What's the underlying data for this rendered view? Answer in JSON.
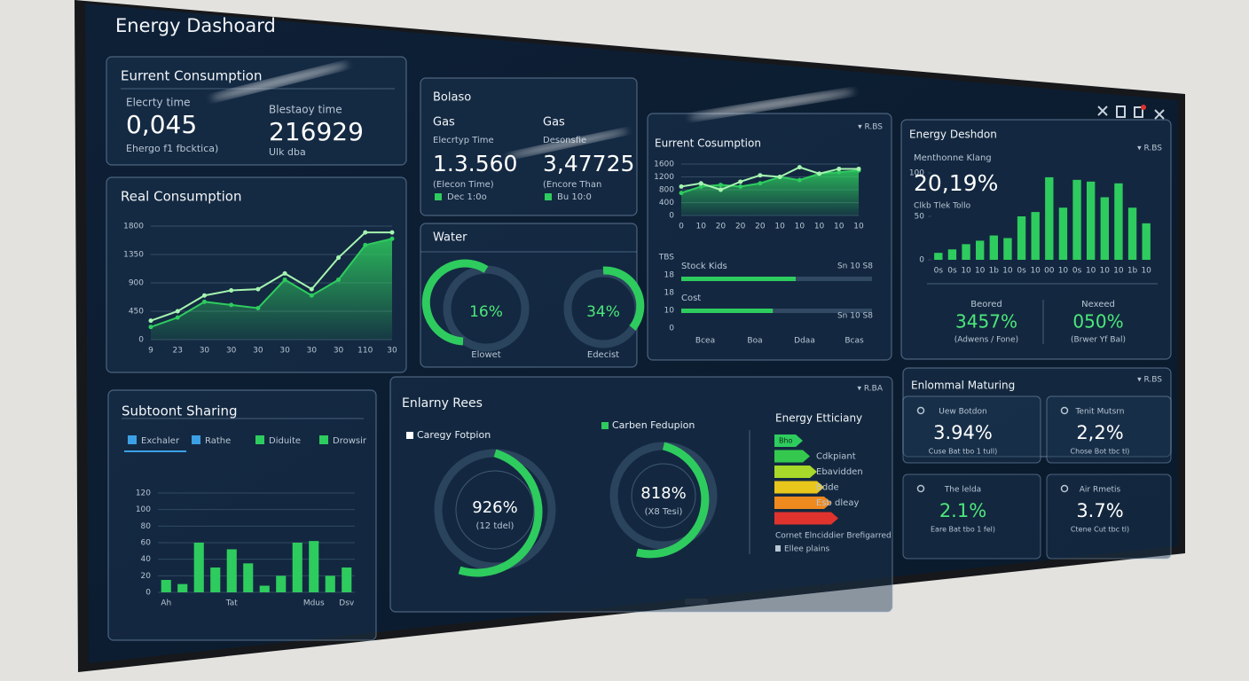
{
  "header": {
    "title": "Energy Dashoard"
  },
  "current_consumption": {
    "title": "Eurrent Consumption",
    "items": [
      {
        "label": "Elecrty time",
        "value": "0,045",
        "note": "Ehergo f1 fbcktica)"
      },
      {
        "label": "Blestaoy time",
        "value": "216929",
        "note": "Ulk dba"
      }
    ]
  },
  "real_consumption": {
    "title": "Real Consumption",
    "chart": {
      "type": "line",
      "categories": [
        "9",
        "23",
        "30",
        "30",
        "30",
        "30",
        "30",
        "30",
        "110",
        "30"
      ],
      "ylim": [
        0,
        1800
      ],
      "yticks": [
        0,
        450,
        900,
        1350,
        1800
      ],
      "grid": true,
      "series": [
        {
          "color": "#2ecc5e",
          "area": true,
          "values": [
            200,
            350,
            600,
            550,
            500,
            950,
            700,
            950,
            1500,
            1600
          ]
        },
        {
          "color": "#a6f5b0",
          "area": false,
          "values": [
            300,
            450,
            700,
            780,
            800,
            1050,
            800,
            1300,
            1700,
            1700
          ]
        }
      ]
    }
  },
  "bolaso": {
    "title": "Bolaso",
    "items": [
      {
        "label": "Gas",
        "sublabel": "Elecrtyp Time",
        "value": "1.3.560",
        "note": "(Elecon Time)",
        "legend": "Dec 1:0o"
      },
      {
        "label": "Gas",
        "sublabel": "Desonsfie",
        "value": "3,47725",
        "note": "(Encore Than",
        "legend": "Bu 10:0"
      }
    ]
  },
  "trend": {
    "title": "Eurrent Cosumption",
    "control": "▾ R.BS",
    "chart": {
      "type": "line",
      "categories": [
        "0",
        "10",
        "20",
        "20",
        "20",
        "10",
        "10",
        "10",
        "10",
        "10"
      ],
      "ylim": [
        0,
        1600
      ],
      "yticks": [
        0,
        400,
        800,
        1200,
        1600
      ],
      "grid": true,
      "series": [
        {
          "color": "#2ecc5e",
          "area": true,
          "values": [
            700,
            900,
            950,
            900,
            1000,
            1200,
            1100,
            1300,
            1350,
            1400
          ]
        },
        {
          "color": "#a6f5b0",
          "area": false,
          "values": [
            900,
            1000,
            800,
            1050,
            1250,
            1200,
            1500,
            1300,
            1450,
            1450
          ]
        }
      ]
    },
    "bars": {
      "type": "bar",
      "orientation": "horizontal",
      "xlim": [
        0,
        100
      ],
      "row_labels": [
        "TBS",
        "18",
        "18",
        "10",
        "0"
      ],
      "categories": [
        "Bcea",
        "Boa",
        "Ddaa",
        "Bcas"
      ],
      "rows": [
        {
          "label": "Stock Kids",
          "note": "Sn 10 S8",
          "value": 60
        },
        {
          "label": "Cost",
          "note": "Sn 10 S8",
          "value": 48
        }
      ],
      "color": "#2ecc5e"
    }
  },
  "water": {
    "title": "Water",
    "gauges": [
      {
        "value": "16%",
        "label": "Elowet"
      },
      {
        "value": "34%",
        "label": "Edecist"
      }
    ]
  },
  "distribution": {
    "title": "Energy Deshdon",
    "control": "▾ R.BS",
    "stat": {
      "label": "Menthonne Klang",
      "value": "20,19%",
      "note": "Clkb Tlek Tollo"
    },
    "chart": {
      "type": "bar",
      "color": "#2ecc5e",
      "ylim": [
        0,
        100
      ],
      "yticks": [
        0,
        50,
        100
      ],
      "grid": false,
      "categories": [
        "0s",
        "0s",
        "10",
        "10",
        "1b",
        "10",
        "0s",
        "10",
        "00",
        "10",
        "0s",
        "10",
        "10",
        "10",
        "1b",
        "10"
      ],
      "values": [
        8,
        12,
        18,
        22,
        28,
        25,
        50,
        55,
        95,
        60,
        92,
        90,
        72,
        88,
        60,
        42
      ]
    },
    "summary": [
      {
        "label": "Beored",
        "value": "3457%",
        "note": "(Adwens / Fone)"
      },
      {
        "label": "Nexeed",
        "value": "050%",
        "note": "(Brwer Yf Bal)"
      }
    ]
  },
  "sharing": {
    "title": "Subtoont Sharing",
    "legend": [
      {
        "name": "Exchaler",
        "color": "#3ba0e6"
      },
      {
        "name": "Rathe",
        "color": "#3ba0e6"
      },
      {
        "name": "Diduite",
        "color": "#2ecc5e"
      },
      {
        "name": "Drowsir",
        "color": "#2ecc5e"
      }
    ],
    "chart": {
      "type": "bar",
      "color": "#2ecc5e",
      "ylim": [
        0,
        120
      ],
      "yticks": [
        0,
        20,
        40,
        60,
        80,
        100,
        120
      ],
      "grid": true,
      "categories": [
        "Ah",
        null,
        null,
        null,
        "Tat",
        null,
        null,
        null,
        null,
        "Mdus",
        null,
        "Dsv"
      ],
      "values": [
        15,
        10,
        60,
        30,
        52,
        35,
        8,
        20,
        60,
        62,
        20,
        30
      ]
    }
  },
  "rates": {
    "title": "Enlarny Rees",
    "control": "▾ R.BA",
    "gauges": [
      {
        "legend": "Caregy Fotpion",
        "value": "926%",
        "note": "(12 tdel)"
      },
      {
        "legend": "Carben Fedupion",
        "value": "818%",
        "note": "(X8 Tesi)"
      }
    ],
    "efficiency": {
      "title": "Energy Etticiany",
      "ratings": [
        {
          "color": "#2ecc5e",
          "tag": "Bho"
        },
        {
          "color": "#34c94e",
          "label": "Cdkpiant"
        },
        {
          "color": "#a8d82a",
          "label": "Ebavidden"
        },
        {
          "color": "#e8c61c",
          "label": "Bdde"
        },
        {
          "color": "#ef8a1e",
          "label": "Esb dleay"
        },
        {
          "color": "#e0332e"
        }
      ],
      "footer": "Cornet Elnciddier Brefigarred",
      "note": "Ellee plains"
    }
  },
  "monitoring": {
    "title": "Enlommal Maturing",
    "control": "▾ R.BS",
    "tiles": [
      {
        "label": "Uew Botdon",
        "value": "3.94%",
        "note": "Cuse Bat tbo 1 tull)"
      },
      {
        "label": "Tenit Mutsrn",
        "value": "2,2%",
        "note": "Chose Bot tbc tl)"
      },
      {
        "label": "The lelda",
        "value": "2.1%",
        "note": "Eare Bat tbo 1 fel)"
      },
      {
        "label": "Air Rmetis",
        "value": "3.7%",
        "note": "Ctene Cut tbc tl)"
      }
    ]
  }
}
